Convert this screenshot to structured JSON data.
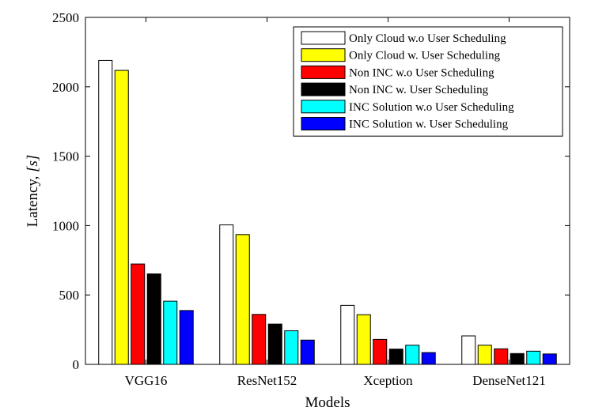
{
  "chart_data": {
    "type": "bar",
    "categories": [
      "VGG16",
      "ResNet152",
      "Xception",
      "DenseNet121"
    ],
    "series": [
      {
        "name": "Only Cloud w.o User Scheduling",
        "color": "#ffffff",
        "values": [
          2190,
          1005,
          425,
          205
        ]
      },
      {
        "name": "Only Cloud w. User Scheduling",
        "color": "#ffff00",
        "values": [
          2118,
          935,
          358,
          138
        ]
      },
      {
        "name": "Non INC w.o User Scheduling",
        "color": "#ff0000",
        "values": [
          723,
          360,
          180,
          112
        ]
      },
      {
        "name": "Non INC w. User Scheduling",
        "color": "#000000",
        "values": [
          652,
          290,
          110,
          78
        ]
      },
      {
        "name": "INC Solution w.o User Scheduling",
        "color": "#00ffff",
        "values": [
          455,
          242,
          138,
          95
        ]
      },
      {
        "name": "INC Solution w. User Scheduling",
        "color": "#0000ff",
        "values": [
          388,
          175,
          85,
          75
        ]
      }
    ],
    "xlabel": "Models",
    "ylabel_prefix": "Latency, ",
    "ylabel_unit": "[s]",
    "ylim": [
      0,
      2500
    ],
    "yticks": [
      0,
      500,
      1000,
      1500,
      2000,
      2500
    ],
    "grid": false,
    "legend_position": "top-right"
  }
}
